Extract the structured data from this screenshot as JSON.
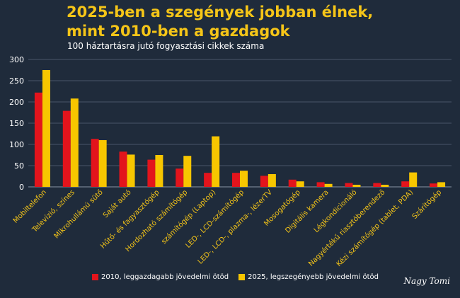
{
  "title_lines": [
    "2025-ben a szegények jobban élnek,",
    "mint 2010-ben a gazdagok"
  ],
  "subtitle": "100 háztartásra jutó fogyasztási cikkek száma",
  "signature": "Nagy Tomi",
  "chart_data": {
    "type": "bar",
    "categories": [
      "Mobiltelefon",
      "Televízió, színes",
      "Mikrohullámú sütő",
      "Saját autó",
      "Hűtő- és fagyasztógép",
      "Hordozható számítógép",
      "számítógép (Laptop)",
      "LED-, LCD-számítógép",
      "LED-, LCD-, plazma-, lézerTV",
      "Mosogatógép",
      "Digitális kamera",
      "Légkondicionáló",
      "Nagyértékű riasztóberendező",
      "Kézi számítógép (tablet, PDA)",
      "Szárítógép"
    ],
    "series": [
      {
        "name": "2010, leggazdagabb jövedelmi ötöd",
        "color": "#e3141c",
        "values": [
          222,
          179,
          113,
          83,
          64,
          43,
          33,
          33,
          26,
          17,
          11,
          9,
          9,
          13,
          8
        ]
      },
      {
        "name": "2025, legszegényebb jövedelmi ötöd",
        "color": "#f7c600",
        "values": [
          275,
          208,
          110,
          76,
          75,
          73,
          119,
          38,
          30,
          13,
          7,
          5,
          5,
          34,
          11
        ]
      }
    ],
    "ylim": [
      0,
      300
    ],
    "yticks": [
      0,
      50,
      100,
      150,
      200,
      250,
      300
    ],
    "grid": true,
    "legend_position": "bottom"
  }
}
